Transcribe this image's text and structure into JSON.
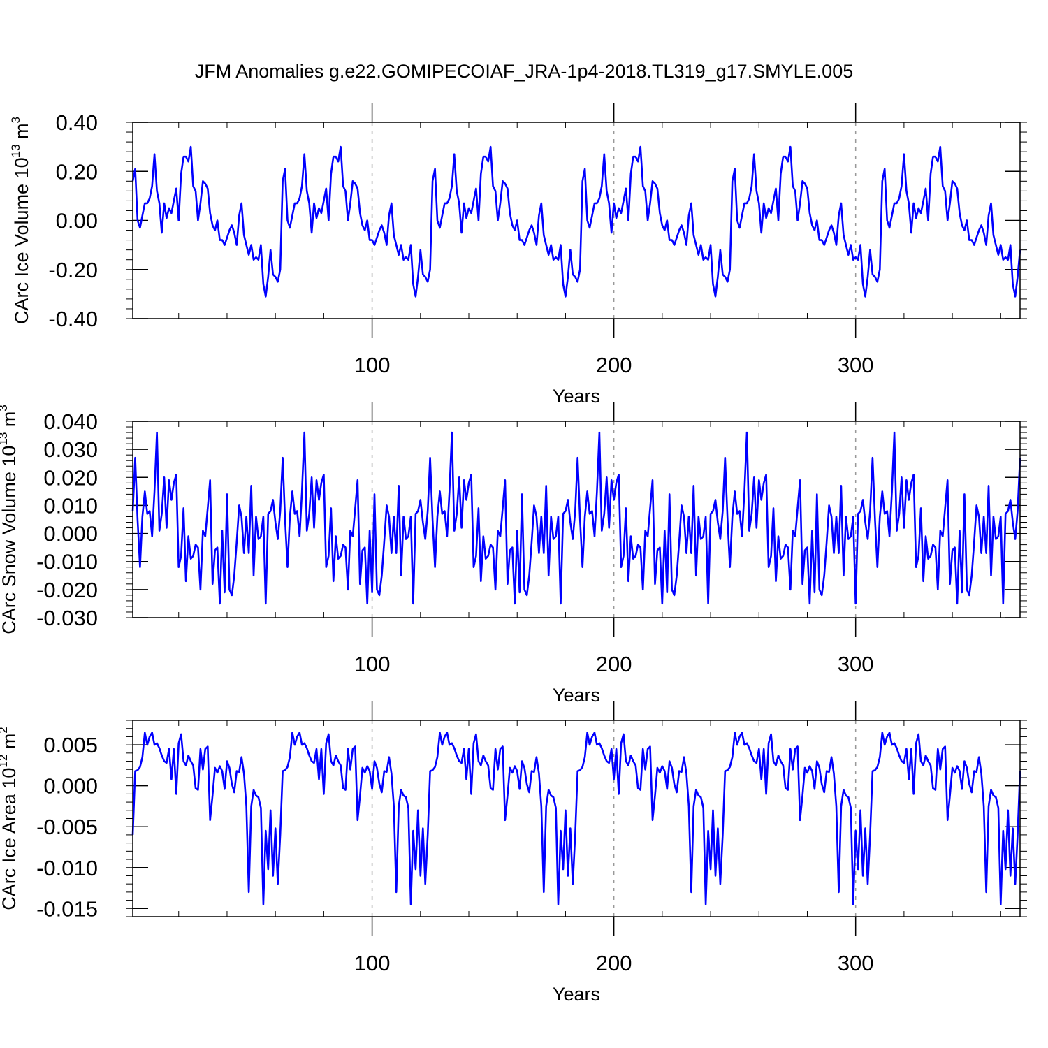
{
  "title": "JFM Anomalies g.e22.GOMIPECOIAF_JRA-1p4-2018.TL319_g17.SMYLE.005",
  "colors": {
    "line": "#0000ff",
    "axis": "#000000",
    "ref": "#999999"
  },
  "chart_data": [
    {
      "type": "line",
      "ylabel": "CArc Ice Volume 10",
      "ylabel_exp": "13",
      "ylabel_unit": " m",
      "ylabel_unit_exp": "3",
      "xlabel": "Years",
      "xlim": [
        1,
        368
      ],
      "ylim": [
        -0.4,
        0.4
      ],
      "yticks": [
        "0.40",
        "0.20",
        "0.00",
        "-0.20",
        "-0.40"
      ],
      "ytick_values": [
        0.4,
        0.2,
        0.0,
        -0.2,
        -0.4
      ],
      "xticks": [
        "100",
        "200",
        "300"
      ],
      "xtick_values": [
        100,
        200,
        300
      ],
      "reference_lines_x": [
        100,
        200,
        300
      ],
      "cycle_length": 62,
      "cycle": [
        0.16,
        0.21,
        0.0,
        -0.03,
        0.02,
        0.07,
        0.07,
        0.09,
        0.14,
        0.27,
        0.12,
        0.07,
        -0.05,
        0.07,
        0.01,
        0.05,
        0.03,
        0.08,
        0.13,
        0.0,
        0.19,
        0.26,
        0.26,
        0.24,
        0.3,
        0.14,
        0.12,
        0.0,
        0.07,
        0.16,
        0.15,
        0.13,
        0.03,
        -0.02,
        -0.04,
        0.0,
        -0.08,
        -0.08,
        -0.1,
        -0.07,
        -0.04,
        -0.02,
        -0.05,
        -0.1,
        0.02,
        0.07,
        -0.06,
        -0.1,
        -0.14,
        -0.1,
        -0.16,
        -0.15,
        -0.16,
        -0.1,
        -0.26,
        -0.31,
        -0.23,
        -0.12,
        -0.22,
        -0.23,
        -0.25,
        -0.2
      ]
    },
    {
      "type": "line",
      "ylabel": "CArc Snow Volume 10",
      "ylabel_exp": "13",
      "ylabel_unit": " m",
      "ylabel_unit_exp": "3",
      "xlabel": "Years",
      "xlim": [
        1,
        368
      ],
      "ylim": [
        -0.03,
        0.04
      ],
      "yticks": [
        "0.040",
        "0.030",
        "0.020",
        "0.010",
        "0.000",
        "-0.010",
        "-0.020",
        "-0.030"
      ],
      "ytick_values": [
        0.04,
        0.03,
        0.02,
        0.01,
        0.0,
        -0.01,
        -0.02,
        -0.03
      ],
      "xticks": [
        "100",
        "200",
        "300"
      ],
      "xtick_values": [
        100,
        200,
        300
      ],
      "reference_lines_x": [
        100,
        200,
        300
      ],
      "cycle_length": 61,
      "cycle": [
        0.008,
        0.027,
        0.005,
        -0.012,
        0.006,
        0.015,
        0.007,
        0.008,
        -0.001,
        0.015,
        0.036,
        0.001,
        0.007,
        0.02,
        0.002,
        0.019,
        0.012,
        0.018,
        0.021,
        -0.012,
        -0.008,
        0.009,
        -0.017,
        -0.001,
        -0.009,
        -0.008,
        -0.004,
        -0.005,
        -0.02,
        0.001,
        -0.001,
        0.009,
        0.019,
        -0.018,
        -0.006,
        -0.005,
        -0.025,
        0.001,
        -0.021,
        0.014,
        -0.02,
        -0.022,
        -0.015,
        -0.003,
        0.01,
        0.006,
        -0.007,
        0.006,
        -0.007,
        0.017,
        -0.015,
        0.006,
        -0.002,
        -0.001,
        0.006,
        -0.025,
        0.007,
        0.008,
        0.012,
        0.004,
        -0.002
      ]
    },
    {
      "type": "line",
      "ylabel": "CArc Ice Area 10",
      "ylabel_exp": "12",
      "ylabel_unit": " m",
      "ylabel_unit_exp": "2",
      "xlabel": "Years",
      "xlim": [
        1,
        368
      ],
      "ylim": [
        -0.016,
        0.008
      ],
      "yticks": [
        "0.005",
        "0.000",
        "-0.005",
        "-0.010",
        "-0.015"
      ],
      "ytick_values": [
        0.005,
        0.0,
        -0.005,
        -0.01,
        -0.015
      ],
      "xticks": [
        "100",
        "200",
        "300"
      ],
      "xtick_values": [
        100,
        200,
        300
      ],
      "reference_lines_x": [
        100,
        200,
        300
      ],
      "cycle_length": 61,
      "cycle": [
        -0.006,
        0.0018,
        0.0019,
        0.0023,
        0.0035,
        0.0065,
        0.005,
        0.006,
        0.0065,
        0.005,
        0.0052,
        0.0046,
        0.0037,
        0.003,
        0.0028,
        0.0045,
        0.0008,
        0.0045,
        -0.001,
        0.0052,
        0.0063,
        0.003,
        0.0025,
        0.0037,
        0.003,
        0.0025,
        -0.0003,
        -0.0005,
        0.0045,
        0.002,
        0.0045,
        0.0048,
        -0.0042,
        -0.0012,
        0.0022,
        0.0016,
        0.0024,
        0.0018,
        -0.0004,
        0.003,
        0.0022,
        0.0002,
        -0.0008,
        0.0018,
        0.0017,
        0.0035,
        0.0015,
        -0.0025,
        -0.013,
        -0.0025,
        -0.0005,
        -0.0012,
        -0.0014,
        -0.0027,
        -0.0145,
        -0.0055,
        -0.0102,
        -0.003,
        -0.011,
        -0.0052,
        -0.012
      ]
    }
  ]
}
